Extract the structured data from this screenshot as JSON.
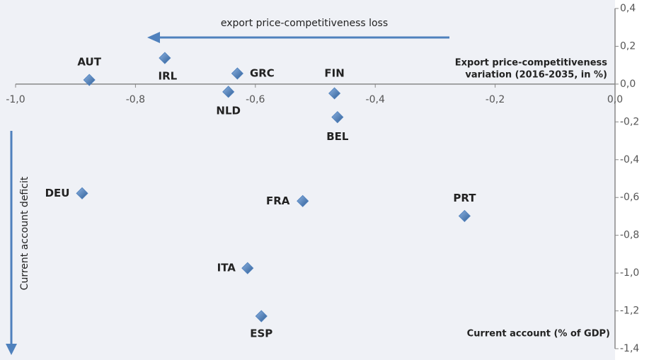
{
  "chart_data": {
    "type": "scatter",
    "color": "#4f81bd",
    "labels": [
      "AUT",
      "IRL",
      "GRC",
      "NLD",
      "FIN",
      "BEL",
      "DEU",
      "FRA",
      "PRT",
      "ITA",
      "ESP"
    ],
    "x": [
      -0.877,
      -0.751,
      -0.63,
      -0.645,
      -0.468,
      -0.463,
      -0.889,
      -0.521,
      -0.251,
      -0.613,
      -0.59
    ],
    "values": [
      0.022,
      0.138,
      0.056,
      -0.041,
      -0.049,
      -0.175,
      -0.578,
      -0.619,
      -0.698,
      -0.974,
      -1.228
    ],
    "xlim": [
      -1.0,
      0.0
    ],
    "ylim": [
      -1.4,
      0.4
    ],
    "xticks": [
      {
        "value": -1.0,
        "label": "-1,0"
      },
      {
        "value": -0.8,
        "label": "-0,8"
      },
      {
        "value": -0.6,
        "label": "-0,6"
      },
      {
        "value": -0.4,
        "label": "-0,4"
      },
      {
        "value": -0.2,
        "label": "-0,2"
      },
      {
        "value": 0.0,
        "label": "0,0"
      }
    ],
    "yticks": [
      {
        "value": 0.4,
        "label": "0,4"
      },
      {
        "value": 0.2,
        "label": "0,2"
      },
      {
        "value": 0.0,
        "label": "0,0"
      },
      {
        "value": -0.2,
        "label": "-0,2"
      },
      {
        "value": -0.4,
        "label": "-0,4"
      },
      {
        "value": -0.6,
        "label": "-0,6"
      },
      {
        "value": -0.8,
        "label": "-0,8"
      },
      {
        "value": -1.0,
        "label": "-1,0"
      },
      {
        "value": -1.2,
        "label": "-1,2"
      },
      {
        "value": -1.4,
        "label": "-1,4"
      }
    ],
    "x_label": [
      "Export price-competitiveness",
      "variation (2016-2035, in %)"
    ],
    "y_label": "Current account (% of GDP)",
    "annotations": [
      "export price-competitiveness loss",
      "Current account deficit"
    ]
  }
}
